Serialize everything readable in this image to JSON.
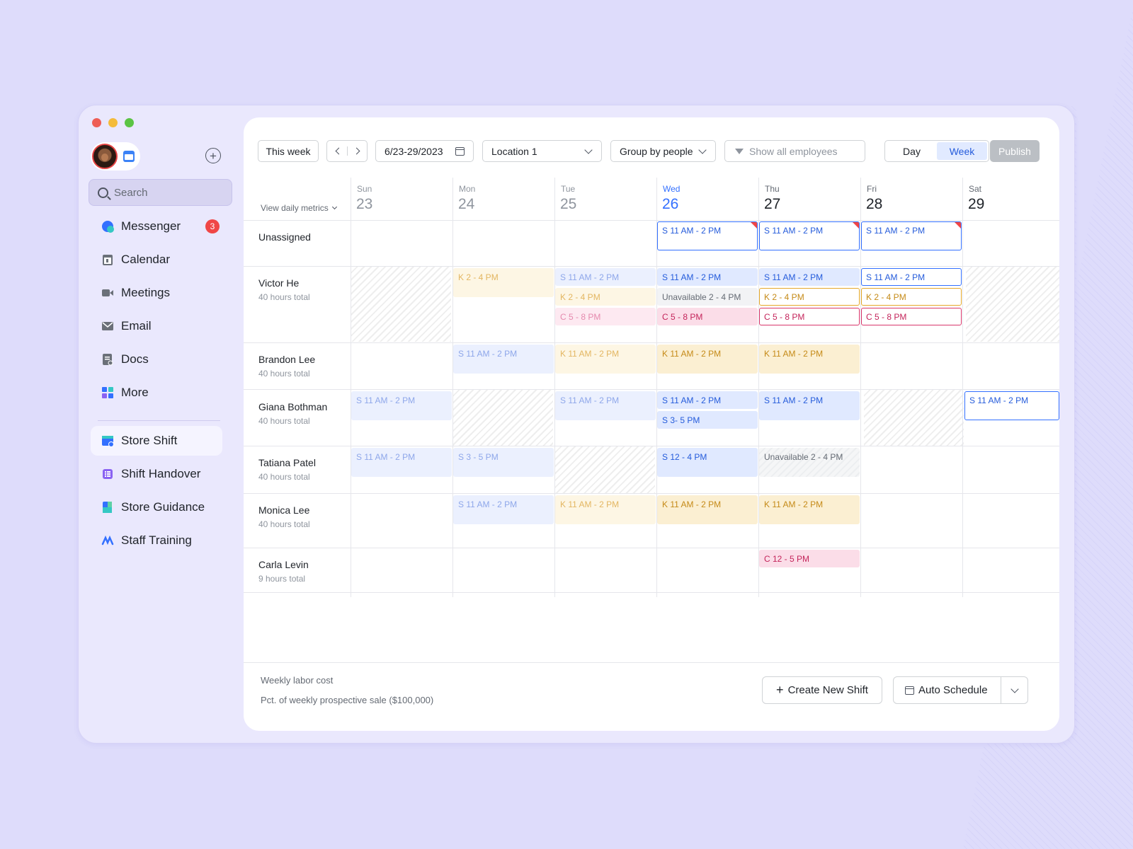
{
  "sidebar": {
    "search_placeholder": "Search",
    "messenger_badge": "3",
    "items": [
      {
        "label": "Messenger"
      },
      {
        "label": "Calendar"
      },
      {
        "label": "Meetings"
      },
      {
        "label": "Email"
      },
      {
        "label": "Docs"
      },
      {
        "label": "More"
      },
      {
        "label": "Store Shift"
      },
      {
        "label": "Shift Handover"
      },
      {
        "label": "Store Guidance"
      },
      {
        "label": "Staff Training"
      }
    ]
  },
  "toolbar": {
    "this_week": "This week",
    "date_range": "6/23-29/2023",
    "location": "Location 1",
    "group_by": "Group by people",
    "filter_placeholder": "Show all employees",
    "view_day": "Day",
    "view_week": "Week",
    "publish": "Publish"
  },
  "metrics_label": "View daily metrics",
  "days": [
    {
      "dow": "Sun",
      "num": "23"
    },
    {
      "dow": "Mon",
      "num": "24"
    },
    {
      "dow": "Tue",
      "num": "25"
    },
    {
      "dow": "Wed",
      "num": "26"
    },
    {
      "dow": "Thu",
      "num": "27"
    },
    {
      "dow": "Fri",
      "num": "28"
    },
    {
      "dow": "Sat",
      "num": "29"
    }
  ],
  "rows": [
    {
      "name": "Unassigned",
      "hours": ""
    },
    {
      "name": "Victor He",
      "hours": "40 hours total"
    },
    {
      "name": "Brandon Lee",
      "hours": "40 hours total"
    },
    {
      "name": "Giana Bothman",
      "hours": "40 hours total"
    },
    {
      "name": "Tatiana Patel",
      "hours": "40 hours total"
    },
    {
      "name": "Monica Lee",
      "hours": "40 hours total"
    },
    {
      "name": "Carla Levin",
      "hours": "9 hours total"
    }
  ],
  "shifts": {
    "unassigned_wed": "S 11 AM - 2 PM",
    "unassigned_thu": "S 11 AM - 2 PM",
    "unassigned_fri": "S 11 AM - 2 PM",
    "victor_mon": "K 2 - 4 PM",
    "victor_tue_1": "S 11 AM - 2 PM",
    "victor_tue_2": "K 2 - 4 PM",
    "victor_tue_3": "C 5 - 8 PM",
    "victor_wed_1": "S 11 AM - 2 PM",
    "victor_wed_2": "Unavailable 2 - 4 PM",
    "victor_wed_3": "C 5 - 8 PM",
    "victor_thu_1": "S 11 AM - 2 PM",
    "victor_thu_2": "K 2 - 4 PM",
    "victor_thu_3": "C 5 - 8 PM",
    "victor_fri_1": "S 11 AM - 2 PM",
    "victor_fri_2": "K 2 - 4 PM",
    "victor_fri_3": "C 5 - 8 PM",
    "brandon_mon": "S 11 AM - 2 PM",
    "brandon_tue": "K 11 AM - 2 PM",
    "brandon_wed": "K 11 AM - 2 PM",
    "brandon_thu": "K 11 AM - 2 PM",
    "giana_sun": "S 11 AM - 2 PM",
    "giana_tue": "S 11 AM - 2 PM",
    "giana_wed_1": "S 11 AM - 2 PM",
    "giana_wed_2": "S 3- 5 PM",
    "giana_thu": "S 11 AM - 2 PM",
    "giana_sat": "S 11 AM - 2 PM",
    "tatiana_sun": "S 11 AM - 2 PM",
    "tatiana_mon": "S 3 - 5 PM",
    "tatiana_wed": "S 12 - 4 PM",
    "tatiana_thu": "Unavailable 2 - 4 PM",
    "monica_mon": "S 11 AM - 2 PM",
    "monica_tue": "K 11 AM - 2 PM",
    "monica_wed": "K 11 AM - 2 PM",
    "monica_thu": "K 11 AM - 2 PM",
    "carla_thu": "C 12 - 5 PM"
  },
  "footer": {
    "labor_cost": "Weekly labor cost",
    "pct_sale": "Pct. of weekly prospective sale ($100,000)",
    "create_shift": "Create New Shift",
    "auto_schedule": "Auto Schedule"
  },
  "colors": {
    "accent": "#3370ff",
    "badge": "#f04646",
    "background": "#dedcfb"
  }
}
